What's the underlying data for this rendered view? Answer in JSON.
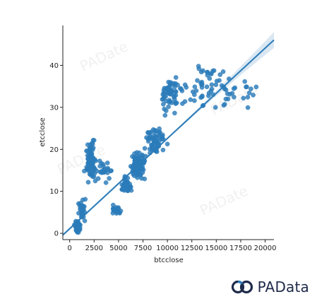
{
  "chart_data": {
    "type": "scatter",
    "xlabel": "btcclose",
    "ylabel": "etcclose",
    "xlim": [
      -700,
      20900
    ],
    "ylim": [
      -1.5,
      49.5
    ],
    "xticks": [
      0,
      2500,
      5000,
      7500,
      10000,
      12500,
      15000,
      17500,
      20000
    ],
    "yticks": [
      0,
      10,
      20,
      30,
      40
    ],
    "grid": false,
    "point_color": "#2b7bb9",
    "line_color": "#2b7bb9",
    "regression": {
      "slope": 0.00215,
      "intercept": 1.1,
      "x_range": [
        -700,
        20900
      ]
    },
    "clusters": [
      {
        "x_center": 800,
        "x_spread": 200,
        "y_center": 1.5,
        "y_spread": 1.0,
        "count": 80
      },
      {
        "x_center": 1300,
        "x_spread": 300,
        "y_center": 6,
        "y_spread": 2,
        "count": 25
      },
      {
        "x_center": 2200,
        "x_spread": 450,
        "y_center": 17,
        "y_spread": 3.5,
        "count": 70
      },
      {
        "x_center": 3500,
        "x_spread": 600,
        "y_center": 15,
        "y_spread": 2,
        "count": 25
      },
      {
        "x_center": 4800,
        "x_spread": 400,
        "y_center": 5.5,
        "y_spread": 0.8,
        "count": 20
      },
      {
        "x_center": 5800,
        "x_spread": 500,
        "y_center": 11.5,
        "y_spread": 1.5,
        "count": 35
      },
      {
        "x_center": 6900,
        "x_spread": 600,
        "y_center": 16,
        "y_spread": 2.5,
        "count": 90
      },
      {
        "x_center": 8800,
        "x_spread": 800,
        "y_center": 22,
        "y_spread": 2.5,
        "count": 60
      },
      {
        "x_center": 10300,
        "x_spread": 900,
        "y_center": 33,
        "y_spread": 3.5,
        "count": 60
      },
      {
        "x_center": 14500,
        "x_spread": 1800,
        "y_center": 35,
        "y_spread": 4.5,
        "count": 60
      },
      {
        "x_center": 18600,
        "x_spread": 800,
        "y_center": 33,
        "y_spread": 4,
        "count": 10
      }
    ]
  },
  "watermark": {
    "text": "PADate"
  },
  "footer": {
    "brand": "PAData"
  }
}
